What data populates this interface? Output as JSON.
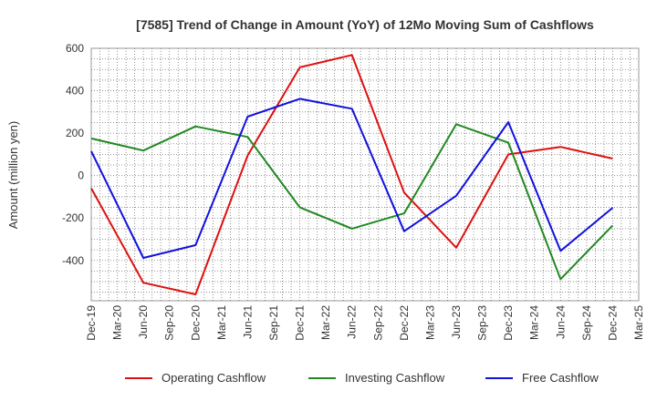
{
  "chart_data": {
    "type": "line",
    "title": "[7585]  Trend of Change in Amount (YoY) of 12Mo Moving Sum of Cashflows",
    "xlabel": "",
    "ylabel": "Amount (million yen)",
    "ylim": [
      -590,
      600
    ],
    "yticks": [
      600,
      400,
      200,
      0,
      -200,
      -400
    ],
    "grid": true,
    "legend_position": "bottom",
    "categories": [
      "Dec-19",
      "Mar-20",
      "Jun-20",
      "Sep-20",
      "Dec-20",
      "Mar-21",
      "Jun-21",
      "Sep-21",
      "Dec-21",
      "Mar-22",
      "Jun-22",
      "Sep-22",
      "Dec-22",
      "Mar-23",
      "Jun-23",
      "Sep-23",
      "Dec-23",
      "Mar-24",
      "Jun-24",
      "Sep-24",
      "Dec-24",
      "Mar-25"
    ],
    "series": [
      {
        "name": "Operating Cashflow",
        "color": "#dd1111",
        "values": [
          -60,
          null,
          -505,
          null,
          -560,
          null,
          95,
          null,
          510,
          null,
          568,
          null,
          -80,
          null,
          -340,
          null,
          100,
          null,
          135,
          null,
          80,
          null
        ]
      },
      {
        "name": "Investing Cashflow",
        "color": "#228822",
        "values": [
          175,
          null,
          118,
          null,
          232,
          null,
          182,
          null,
          -150,
          null,
          -250,
          null,
          -178,
          null,
          242,
          null,
          155,
          null,
          -488,
          null,
          -235,
          null
        ]
      },
      {
        "name": "Free Cashflow",
        "color": "#1111dd",
        "values": [
          115,
          null,
          -388,
          null,
          -328,
          null,
          278,
          null,
          362,
          null,
          315,
          null,
          -262,
          null,
          -95,
          null,
          252,
          null,
          -355,
          null,
          -152,
          null
        ]
      }
    ]
  }
}
